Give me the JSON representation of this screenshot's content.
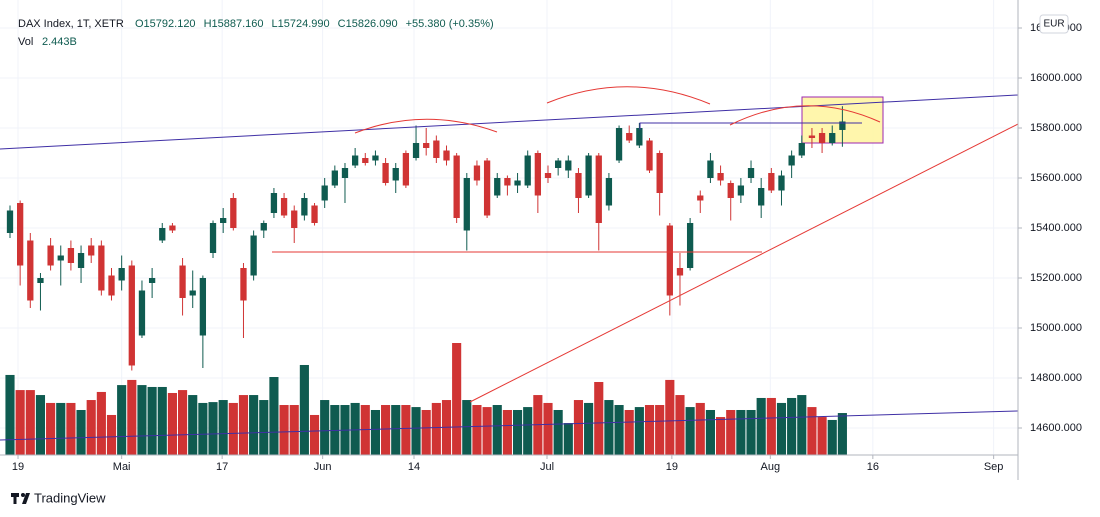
{
  "chart_data": {
    "type": "candlestick",
    "title": "DAX Index, 1T, XETR",
    "ohlc_header": [
      "O15792.120",
      "H15887.160",
      "L15724.990",
      "C15826.090",
      "+55.380 (+0.35%)"
    ],
    "volume_label": "Vol",
    "volume_value_label": "2.443B",
    "currency": "EUR",
    "brand": "TradingView",
    "up_color": "#0f5b50",
    "down_color": "#d03434",
    "open": [
      15380,
      15500,
      15350,
      15180,
      15330,
      15270,
      15320,
      15240,
      15330,
      15330,
      15210,
      15190,
      15250,
      14970,
      15180,
      15350,
      15410,
      15250,
      15130,
      14970,
      15300,
      15420,
      15520,
      15240,
      15210,
      15390,
      15460,
      15520,
      15470,
      15450,
      15490,
      15510,
      15570,
      15600,
      15650,
      15680,
      15670,
      15660,
      15590,
      15700,
      15680,
      15740,
      15750,
      15710,
      15690,
      15390,
      15650,
      15670,
      15530,
      15600,
      15570,
      15570,
      15700,
      15620,
      15640,
      15630,
      15620,
      15530,
      15690,
      15490,
      15670,
      15780,
      15730,
      15750,
      15700,
      15410,
      15240,
      15240,
      15530,
      15600,
      15620,
      15580,
      15530,
      15600,
      15490,
      15620,
      15550,
      15650,
      15690,
      15770,
      15780,
      15740,
      15792.12
    ],
    "high": [
      15490,
      15510,
      15380,
      15220,
      15360,
      15330,
      15350,
      15330,
      15360,
      15350,
      15240,
      15290,
      15270,
      15190,
      15240,
      15420,
      15420,
      15280,
      15230,
      15210,
      15430,
      15480,
      15540,
      15260,
      15390,
      15430,
      15560,
      15540,
      15490,
      15540,
      15500,
      15600,
      15650,
      15660,
      15720,
      15700,
      15710,
      15680,
      15660,
      15710,
      15810,
      15800,
      15770,
      15730,
      15700,
      15620,
      15670,
      15680,
      15620,
      15610,
      15620,
      15710,
      15710,
      15650,
      15680,
      15690,
      15640,
      15700,
      15700,
      15620,
      15810,
      15810,
      15820,
      15760,
      15710,
      15420,
      15300,
      15440,
      15550,
      15700,
      15650,
      15590,
      15600,
      15670,
      15600,
      15640,
      15630,
      15710,
      15770,
      15800,
      15800,
      15810,
      15887.16
    ],
    "low": [
      15360,
      15170,
      15080,
      15070,
      15230,
      15170,
      15230,
      15180,
      15260,
      15130,
      15110,
      15150,
      14830,
      14960,
      15120,
      15340,
      15380,
      15050,
      15080,
      14840,
      15280,
      15380,
      15390,
      14960,
      15190,
      15360,
      15440,
      15440,
      15340,
      15430,
      15410,
      15480,
      15560,
      15500,
      15640,
      15650,
      15650,
      15570,
      15540,
      15560,
      15670,
      15690,
      15660,
      15650,
      15420,
      15310,
      15570,
      15440,
      15520,
      15530,
      15540,
      15560,
      15460,
      15580,
      15610,
      15600,
      15460,
      15520,
      15310,
      15470,
      15660,
      15740,
      15720,
      15620,
      15450,
      15050,
      15090,
      15230,
      15460,
      15580,
      15570,
      15430,
      15500,
      15580,
      15440,
      15540,
      15490,
      15600,
      15680,
      15720,
      15700,
      15730,
      15724.99
    ],
    "close": [
      15470,
      15250,
      15110,
      15200,
      15250,
      15290,
      15260,
      15300,
      15290,
      15150,
      15130,
      15240,
      14850,
      15150,
      15200,
      15400,
      15390,
      15120,
      15150,
      15200,
      15420,
      15440,
      15400,
      15110,
      15370,
      15420,
      15540,
      15450,
      15400,
      15520,
      15420,
      15570,
      15630,
      15640,
      15690,
      15660,
      15690,
      15580,
      15640,
      15570,
      15740,
      15720,
      15680,
      15670,
      15440,
      15600,
      15590,
      15450,
      15600,
      15570,
      15590,
      15690,
      15530,
      15600,
      15670,
      15670,
      15520,
      15690,
      15420,
      15600,
      15800,
      15750,
      15800,
      15630,
      15540,
      15130,
      15210,
      15420,
      15510,
      15670,
      15590,
      15520,
      15570,
      15640,
      15560,
      15550,
      15610,
      15690,
      15740,
      15760,
      15740,
      15780,
      15826.09
    ],
    "volume": [
      4.66,
      3.78,
      3.78,
      3.49,
      3.03,
      3.03,
      3.03,
      2.62,
      3.2,
      3.67,
      2.33,
      4.07,
      4.37,
      4.07,
      3.96,
      3.96,
      3.61,
      3.78,
      3.49,
      3.03,
      3.08,
      3.2,
      3.03,
      3.49,
      3.49,
      3.2,
      4.54,
      2.91,
      2.91,
      5.24,
      2.33,
      3.2,
      2.91,
      2.91,
      3.03,
      2.91,
      2.62,
      2.91,
      2.91,
      2.91,
      2.79,
      2.62,
      3.03,
      3.2,
      6.52,
      3.2,
      2.91,
      2.79,
      2.91,
      2.62,
      2.62,
      2.79,
      3.49,
      3.03,
      2.62,
      1.86,
      3.2,
      3.03,
      4.25,
      3.2,
      2.91,
      2.62,
      2.79,
      2.91,
      2.91,
      4.37,
      3.49,
      2.79,
      3.03,
      2.62,
      2.21,
      2.62,
      2.62,
      2.62,
      3.32,
      3.32,
      3.03,
      3.32,
      3.49,
      2.79,
      2.21,
      2.04,
      2.443
    ],
    "xlim": [
      -0.985,
      99.3
    ],
    "xticks": [
      {
        "value": 0.79,
        "label": "19"
      },
      {
        "value": 11.0,
        "label": "Mai"
      },
      {
        "value": 20.9,
        "label": "17"
      },
      {
        "value": 30.8,
        "label": "Jun"
      },
      {
        "value": 39.8,
        "label": "14"
      },
      {
        "value": 52.9,
        "label": "Jul"
      },
      {
        "value": 65.2,
        "label": "19"
      },
      {
        "value": 74.9,
        "label": "Aug"
      },
      {
        "value": 85.0,
        "label": "16"
      },
      {
        "value": 96.9,
        "label": "Sep"
      }
    ],
    "ylim": [
      14492,
      16312
    ],
    "yticks": [
      {
        "value": 14600,
        "label": "14600.000"
      },
      {
        "value": 14800,
        "label": "14800.000"
      },
      {
        "value": 15000,
        "label": "15000.000"
      },
      {
        "value": 15200,
        "label": "15200.000"
      },
      {
        "value": 15400,
        "label": "15400.000"
      },
      {
        "value": 15600,
        "label": "15600.000"
      },
      {
        "value": 15800,
        "label": "15800.000"
      },
      {
        "value": 16000,
        "label": "16000.000"
      },
      {
        "value": 16200,
        "label": "16200.000"
      }
    ],
    "grid": true
  }
}
